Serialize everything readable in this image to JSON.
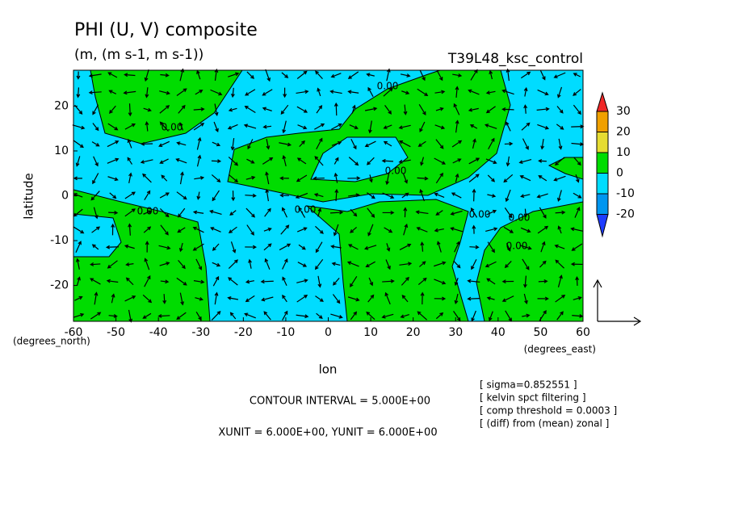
{
  "chart_data": {
    "type": "contour",
    "title": "PHI (U, V) composite",
    "subtitle": "(m, (m s-1, m s-1))",
    "experiment": "T39L48_ksc_control",
    "x_label": "lon",
    "y_label": "latitude",
    "x_unit_label": "(degrees_east)",
    "y_unit_label": "(degrees_north)",
    "xlim": [
      -60,
      60
    ],
    "xticks": [
      -60,
      -50,
      -40,
      -30,
      -20,
      -10,
      0,
      10,
      20,
      30,
      40,
      50,
      60
    ],
    "ylim": [
      -28,
      28
    ],
    "yticks": [
      -20,
      -10,
      0,
      10,
      20
    ],
    "colorbar": {
      "levels": [
        -20,
        -10,
        0,
        10,
        20,
        30
      ],
      "colors": [
        "#1e3cff",
        "#0096f0",
        "#00dcff",
        "#00dc00",
        "#e6dc32",
        "#f0a000",
        "#f02828"
      ]
    },
    "contour_labels": [
      "0.00",
      "0.00",
      "0.00",
      "0.00",
      "0.00",
      "0.00",
      "0.00",
      "0.00"
    ],
    "notes": [
      "CONTOUR INTERVAL = 5.000E+00",
      "XUNIT = 6.000E+00, YUNIT = 6.000E+00"
    ],
    "info": [
      "[ sigma=0.852551 ]",
      "[ kelvin spct filtering ]",
      "[ comp threshold = 0.0003 ]",
      "[ (diff) from (mean) zonal ]"
    ]
  }
}
